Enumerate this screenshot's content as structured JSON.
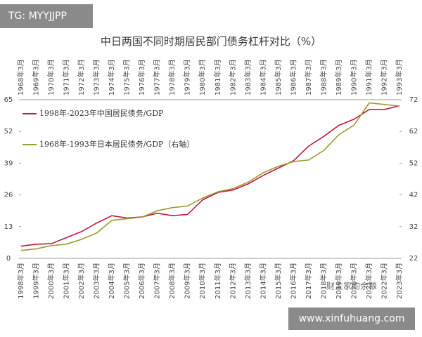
{
  "chart_data": {
    "type": "line",
    "title": "中日两国不同时期居民部门债务杠杆对比（%）",
    "categories": [
      "1998年3月",
      "1999年3月",
      "2000年3月",
      "2001年3月",
      "2002年3月",
      "2003年3月",
      "2004年3月",
      "2005年3月",
      "2006年3月",
      "2007年3月",
      "2008年3月",
      "2009年3月",
      "2010年3月",
      "2011年3月",
      "2012年3月",
      "2013年3月",
      "2014年3月",
      "2015年3月",
      "2016年3月",
      "2017年3月",
      "2018年3月",
      "2019年3月",
      "2020年3月",
      "2021年3月",
      "2022年3月",
      "2023年3月"
    ],
    "top_categories": [
      "1968年3月",
      "1969年3月",
      "1970年3月",
      "1971年3月",
      "1972年3月",
      "1973年3月",
      "1974年3月",
      "1975年3月",
      "1976年3月",
      "1977年3月",
      "1978年3月",
      "1979年3月",
      "1980年3月",
      "1981年3月",
      "1982年3月",
      "1983年3月",
      "1984年3月",
      "1985年3月",
      "1986年3月",
      "1987年3月",
      "1988年3月",
      "1989年3月",
      "1990年3月",
      "1991年3月",
      "1992年3月",
      "1993年3月"
    ],
    "series": [
      {
        "name": "1998年-2023年中国居民债务/GDP",
        "color": "#c4163f",
        "values": [
          5,
          5.8,
          6,
          8.5,
          11,
          14.5,
          17.5,
          16.5,
          17,
          18.5,
          17.5,
          18,
          24,
          27,
          28,
          30.5,
          34,
          37,
          40,
          46,
          50,
          54.5,
          57,
          61,
          61,
          62.5
        ]
      },
      {
        "name": "1968年-1993年日本居民债务/GDP（右轴）",
        "color": "#9c9a2c",
        "axis": "y2",
        "values": [
          24.5,
          25,
          26,
          26.5,
          28,
          30,
          34,
          34.5,
          35,
          37,
          38,
          38.5,
          41,
          43,
          44,
          46,
          49,
          51,
          52.5,
          53,
          56,
          61,
          64,
          71,
          70.5,
          70
        ]
      }
    ],
    "ylim": [
      0,
      65
    ],
    "yticks": [
      0,
      13,
      26,
      39,
      52,
      65
    ],
    "y2lim": [
      22,
      72
    ],
    "y2ticks": [
      22,
      32,
      42,
      52,
      62,
      72
    ],
    "watermarks": [
      "TG: MYYJJPP",
      "财主家的余粮",
      "www.xinfuhuang.com"
    ]
  }
}
